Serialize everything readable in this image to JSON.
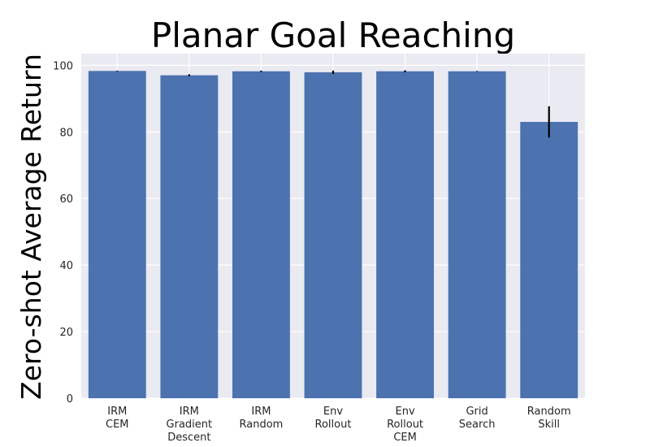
{
  "chart_data": {
    "type": "bar",
    "title": "Planar Goal Reaching",
    "xlabel": "",
    "ylabel": "Zero-shot Average Return",
    "ylim": [
      0,
      103.5
    ],
    "yticks": [
      0,
      20,
      40,
      60,
      80,
      100
    ],
    "grid": true,
    "categories": [
      [
        "IRM",
        "CEM"
      ],
      [
        "IRM",
        "Gradient",
        "Descent"
      ],
      [
        "IRM",
        "Random"
      ],
      [
        "Env",
        "Rollout"
      ],
      [
        "Env",
        "Rollout",
        "CEM"
      ],
      [
        "Grid",
        "Search"
      ],
      [
        "Random",
        "Skill"
      ]
    ],
    "values": [
      98.3,
      97.0,
      98.2,
      97.9,
      98.2,
      98.2,
      83.0
    ],
    "errors": [
      0.1,
      0.3,
      0.2,
      0.5,
      0.3,
      0.1,
      4.7
    ],
    "colors": {
      "bar": "#4c72b0",
      "plot_bg": "#eaeaf2",
      "grid": "#ffffff",
      "text": "#262626",
      "error": "#000000"
    }
  }
}
